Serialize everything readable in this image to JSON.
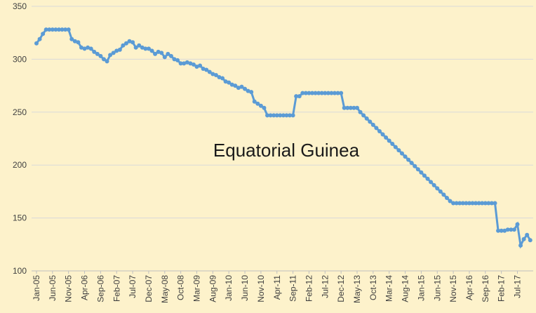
{
  "chart_data": {
    "type": "line",
    "annotation": "Equatorial Guinea",
    "categories": [
      "Jan-05",
      null,
      null,
      null,
      null,
      "Jun-05",
      null,
      null,
      null,
      null,
      "Nov-05",
      null,
      null,
      null,
      null,
      "Apr-06",
      null,
      null,
      null,
      null,
      "Sep-06",
      null,
      null,
      null,
      null,
      "Feb-07",
      null,
      null,
      null,
      null,
      "Jul-07",
      null,
      null,
      null,
      null,
      "Dec-07",
      null,
      null,
      null,
      null,
      "May-08",
      null,
      null,
      null,
      null,
      "Oct-08",
      null,
      null,
      null,
      null,
      "Mar-09",
      null,
      null,
      null,
      null,
      "Aug-09",
      null,
      null,
      null,
      null,
      "Jan-10",
      null,
      null,
      null,
      null,
      "Jun-10",
      null,
      null,
      null,
      null,
      "Nov-10",
      null,
      null,
      null,
      null,
      "Apr-11",
      null,
      null,
      null,
      null,
      "Sep-11",
      null,
      null,
      null,
      null,
      "Feb-12",
      null,
      null,
      null,
      null,
      "Jul-12",
      null,
      null,
      null,
      null,
      "Dec-12",
      null,
      null,
      null,
      null,
      "May-13",
      null,
      null,
      null,
      null,
      "Oct-13",
      null,
      null,
      null,
      null,
      "Mar-14",
      null,
      null,
      null,
      null,
      "Aug-14",
      null,
      null,
      null,
      null,
      "Jan-15",
      null,
      null,
      null,
      null,
      "Jun-15",
      null,
      null,
      null,
      null,
      "Nov-15",
      null,
      null,
      null,
      null,
      "Apr-16",
      null,
      null,
      null,
      null,
      "Sep-16",
      null,
      null,
      null,
      null,
      "Feb-17",
      null,
      null,
      null,
      null,
      "Jul-17",
      null,
      null,
      null,
      null
    ],
    "values": [
      315,
      319,
      324,
      328,
      328,
      328,
      328,
      328,
      328,
      328,
      328,
      319,
      317,
      316,
      311,
      310,
      311,
      310,
      307,
      305,
      303,
      300,
      298,
      304,
      306,
      308,
      309,
      313,
      315,
      317,
      316,
      311,
      313,
      311,
      310,
      310,
      308,
      305,
      307,
      306,
      302,
      305,
      303,
      300,
      299,
      296,
      296,
      297,
      296,
      295,
      293,
      294,
      291,
      290,
      288,
      286,
      285,
      283,
      282,
      279,
      278,
      276,
      275,
      273,
      274,
      272,
      270,
      269,
      260,
      258,
      256,
      254,
      247,
      247,
      247,
      247,
      247,
      247,
      247,
      247,
      247,
      265,
      265,
      268,
      268,
      268,
      268,
      268,
      268,
      268,
      268,
      268,
      268,
      268,
      268,
      268,
      254,
      254,
      254,
      254,
      254,
      250,
      247,
      244,
      241,
      238,
      235,
      232,
      229,
      226,
      223,
      220,
      217,
      214,
      211,
      208,
      205,
      202,
      199,
      196,
      193,
      190,
      187,
      184,
      181,
      178,
      175,
      172,
      169,
      166,
      164,
      164,
      164,
      164,
      164,
      164,
      164,
      164,
      164,
      164,
      164,
      164,
      164,
      164,
      138,
      138,
      138,
      139,
      139,
      139,
      144,
      124,
      130,
      134,
      129
    ],
    "color": "#5b9bd5",
    "ylim": [
      100,
      350
    ],
    "yticks": [
      100,
      150,
      200,
      250,
      300,
      350
    ],
    "grid": true
  }
}
